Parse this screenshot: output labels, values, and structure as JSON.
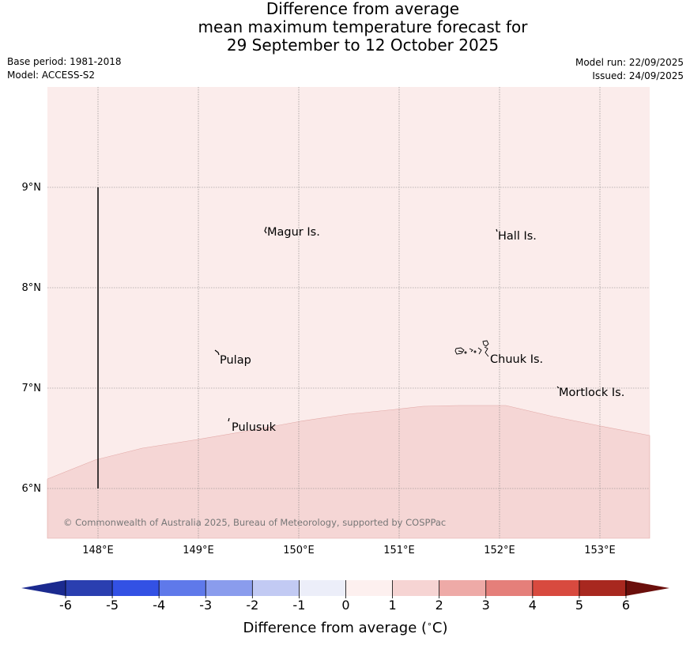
{
  "title": {
    "line1": "Difference from average",
    "line2": "mean maximum temperature forecast for",
    "line3": "29 September to 12 October 2025"
  },
  "meta_left": {
    "base_period": "Base period: 1981-2018",
    "model": "Model: ACCESS-S2"
  },
  "meta_right": {
    "model_run": "Model run: 22/09/2025",
    "issued": "Issued: 24/09/2025"
  },
  "map": {
    "lat_ticks": [
      "9°N",
      "8°N",
      "7°N",
      "6°N"
    ],
    "lon_ticks": [
      "148°E",
      "149°E",
      "150°E",
      "151°E",
      "152°E",
      "153°E"
    ],
    "places": [
      "Magur Is.",
      "Hall Is.",
      "Pulap",
      "Chuuk Is.",
      "Mortlock Is.",
      "Pulusuk"
    ],
    "copyright": "© Commonwealth of Australia 2025, Bureau of Meteorology, supported by COSPPac",
    "background_color": "#fbeceb",
    "anomaly_region_color": "#f5d6d5"
  },
  "colorbar": {
    "ticks": [
      "-6",
      "-5",
      "-4",
      "-3",
      "-2",
      "-1",
      "0",
      "1",
      "2",
      "3",
      "4",
      "5",
      "6"
    ],
    "label": "Difference from average (°C)",
    "label_prefix": "Difference from average (",
    "label_unit_sup": "∘",
    "label_unit": "C)",
    "colors": [
      "#1b2a8f",
      "#2a3fb0",
      "#3351e4",
      "#5f79ea",
      "#8a9ced",
      "#c2caf3",
      "#eceef9",
      "#fdf0ef",
      "#f6d4d3",
      "#eeaaa7",
      "#e57f7a",
      "#d84a3f",
      "#a8281f",
      "#6b0f0c"
    ]
  }
}
